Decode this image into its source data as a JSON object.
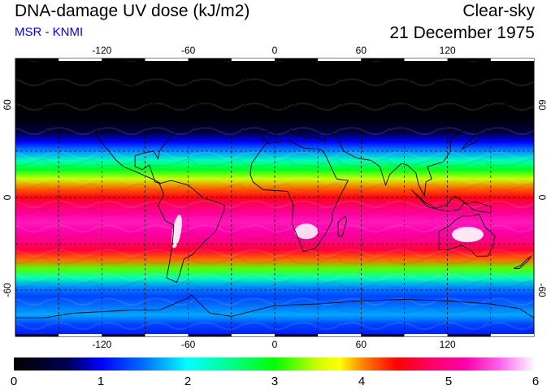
{
  "header": {
    "title": "DNA-damage UV dose (kJ/m2)",
    "subtitle": "MSR - KNMI",
    "condition": "Clear-sky",
    "date": "21 December 1975"
  },
  "map": {
    "projection": "equirectangular",
    "lon_range": [
      -180,
      180
    ],
    "lat_range": [
      -90,
      90
    ],
    "lon_ticks": [
      {
        "value": -120,
        "label": "-120"
      },
      {
        "value": -60,
        "label": "-60"
      },
      {
        "value": 0,
        "label": "0"
      },
      {
        "value": 60,
        "label": "60"
      },
      {
        "value": 120,
        "label": "120"
      }
    ],
    "lat_ticks": [
      {
        "value": 60,
        "label": "60"
      },
      {
        "value": 0,
        "label": "0"
      },
      {
        "value": -60,
        "label": "-60"
      }
    ],
    "grid": "dashed, every 30 degrees",
    "field_description": "zonal bands: near zero north of ~45N, maximum 5-6 in southern tropics/subtropics",
    "colors": {
      "land_outline": "#000000",
      "grid": "#000000"
    }
  },
  "colorbar": {
    "min": 0,
    "max": 6,
    "tick_labels": [
      "0",
      "1",
      "2",
      "3",
      "4",
      "5",
      "6"
    ],
    "stops": [
      {
        "value": 0.0,
        "color": "#000000"
      },
      {
        "value": 0.6,
        "color": "#000050"
      },
      {
        "value": 1.0,
        "color": "#0000ff"
      },
      {
        "value": 1.5,
        "color": "#0070ff"
      },
      {
        "value": 2.0,
        "color": "#00ffff"
      },
      {
        "value": 2.5,
        "color": "#00ff88"
      },
      {
        "value": 3.0,
        "color": "#00ff00"
      },
      {
        "value": 3.5,
        "color": "#ccff00"
      },
      {
        "value": 3.75,
        "color": "#ffff00"
      },
      {
        "value": 4.0,
        "color": "#ff8800"
      },
      {
        "value": 4.4,
        "color": "#ff0000"
      },
      {
        "value": 4.8,
        "color": "#ff0066"
      },
      {
        "value": 5.2,
        "color": "#ff00aa"
      },
      {
        "value": 5.6,
        "color": "#ff66ee"
      },
      {
        "value": 6.0,
        "color": "#ffffff"
      }
    ]
  }
}
